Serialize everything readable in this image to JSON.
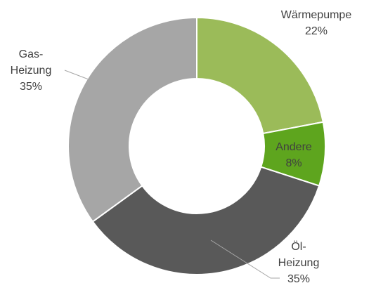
{
  "chart_data": {
    "type": "donut",
    "categories": [
      "Wärmepumpe",
      "Andere",
      "Öl-Heizung",
      "Gas-Heizung"
    ],
    "values": [
      22,
      8,
      35,
      35
    ],
    "value_labels": [
      "22%",
      "8%",
      "35%",
      "35%"
    ],
    "colors": [
      "#9bbb59",
      "#5ea51e",
      "#595959",
      "#a6a6a6"
    ]
  }
}
